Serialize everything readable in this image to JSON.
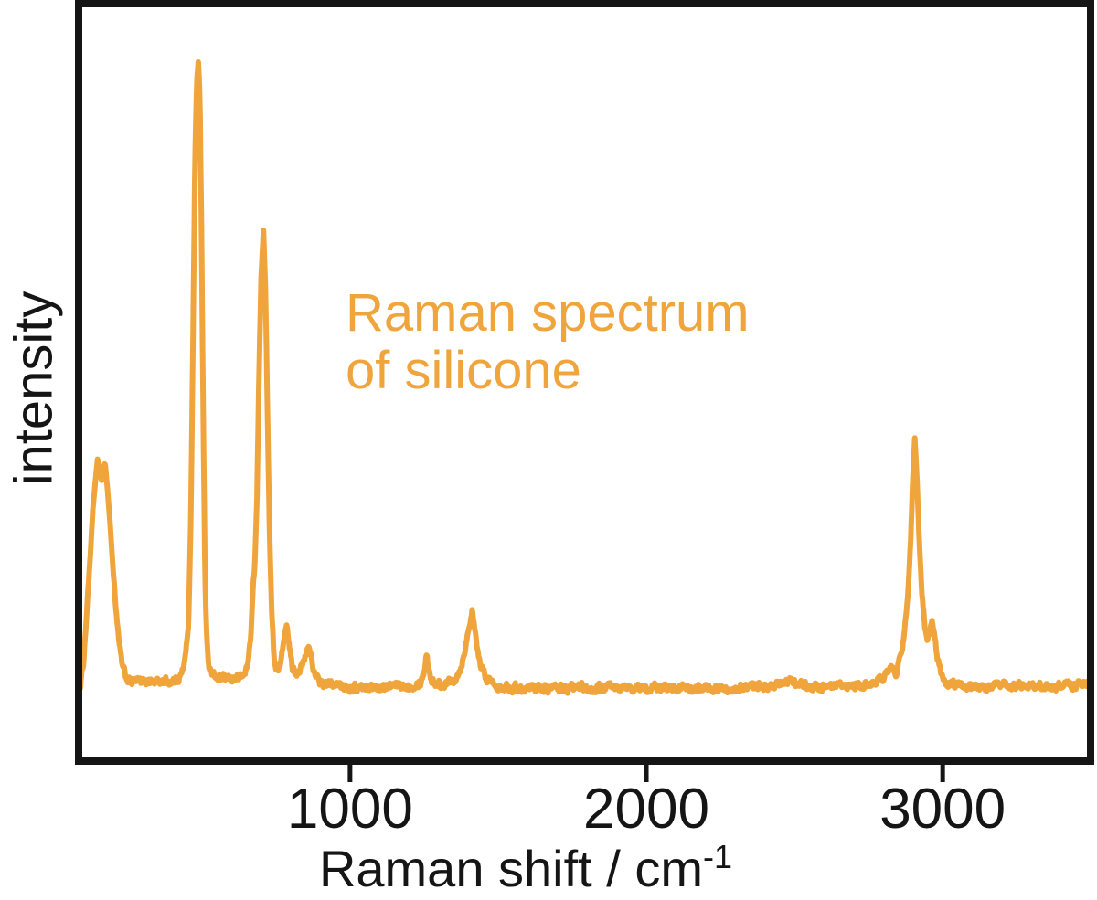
{
  "figure": {
    "ylabel": "intensity",
    "xlabel_main": "Raman shift / cm",
    "xlabel_exponent": "-1",
    "annotation_line1": "Raman spectrum",
    "annotation_line2": "of silicone"
  },
  "chart_data": {
    "type": "line",
    "title": "Raman spectrum of silicone",
    "xlabel": "Raman shift / cm^-1",
    "ylabel": "intensity",
    "x_range": [
      90,
      3490
    ],
    "x_ticks": [
      1000,
      2000,
      3000
    ],
    "y_ticks": [],
    "grid": false,
    "legend": "none",
    "line_color": "#EFA53C",
    "annotation_color": "#EFA53C",
    "axis_color": "#151515",
    "noise_amplitude": 0.006,
    "major_peaks": [
      {
        "center": 150,
        "rel_height": 0.36,
        "note": "broad double maximum at ~150 and ~173"
      },
      {
        "center": 488,
        "rel_height": 1.0
      },
      {
        "center": 708,
        "rel_height": 0.73
      },
      {
        "center": 787,
        "rel_height": 0.1
      },
      {
        "center": 862,
        "rel_height": 0.06
      },
      {
        "center": 1262,
        "rel_height": 0.05
      },
      {
        "center": 1412,
        "rel_height": 0.12
      },
      {
        "center": 2906,
        "rel_height": 0.4
      },
      {
        "center": 2965,
        "rel_height": 0.1
      }
    ],
    "series": [
      {
        "name": "silicone Raman spectrum",
        "points": [
          [
            90,
            0.0
          ],
          [
            100,
            0.035
          ],
          [
            108,
            0.09
          ],
          [
            117,
            0.16
          ],
          [
            125,
            0.22
          ],
          [
            132,
            0.28
          ],
          [
            141,
            0.33
          ],
          [
            148,
            0.362
          ],
          [
            155,
            0.35
          ],
          [
            161,
            0.327
          ],
          [
            167,
            0.336
          ],
          [
            173,
            0.358
          ],
          [
            181,
            0.318
          ],
          [
            190,
            0.262
          ],
          [
            199,
            0.195
          ],
          [
            209,
            0.13
          ],
          [
            220,
            0.07
          ],
          [
            232,
            0.03
          ],
          [
            244,
            0.013
          ],
          [
            260,
            0.005
          ],
          [
            280,
            0.007
          ],
          [
            300,
            0.005
          ],
          [
            320,
            0.008
          ],
          [
            345,
            0.005
          ],
          [
            370,
            0.007
          ],
          [
            395,
            0.006
          ],
          [
            415,
            0.009
          ],
          [
            432,
            0.018
          ],
          [
            445,
            0.045
          ],
          [
            455,
            0.1
          ],
          [
            463,
            0.27
          ],
          [
            470,
            0.55
          ],
          [
            477,
            0.85
          ],
          [
            483,
            0.97
          ],
          [
            488,
            1.0
          ],
          [
            493,
            0.95
          ],
          [
            499,
            0.72
          ],
          [
            505,
            0.42
          ],
          [
            511,
            0.17
          ],
          [
            517,
            0.07
          ],
          [
            524,
            0.032
          ],
          [
            533,
            0.018
          ],
          [
            545,
            0.013
          ],
          [
            560,
            0.011
          ],
          [
            580,
            0.01
          ],
          [
            600,
            0.011
          ],
          [
            620,
            0.012
          ],
          [
            640,
            0.015
          ],
          [
            655,
            0.032
          ],
          [
            665,
            0.08
          ],
          [
            673,
            0.16
          ],
          [
            679,
            0.195
          ],
          [
            686,
            0.3
          ],
          [
            693,
            0.5
          ],
          [
            700,
            0.655
          ],
          [
            708,
            0.73
          ],
          [
            715,
            0.63
          ],
          [
            722,
            0.42
          ],
          [
            729,
            0.23
          ],
          [
            736,
            0.115
          ],
          [
            743,
            0.05
          ],
          [
            750,
            0.025
          ],
          [
            758,
            0.022
          ],
          [
            768,
            0.04
          ],
          [
            778,
            0.08
          ],
          [
            787,
            0.103
          ],
          [
            796,
            0.057
          ],
          [
            806,
            0.028
          ],
          [
            818,
            0.02
          ],
          [
            832,
            0.026
          ],
          [
            845,
            0.038
          ],
          [
            855,
            0.054
          ],
          [
            862,
            0.063
          ],
          [
            871,
            0.042
          ],
          [
            881,
            0.016
          ],
          [
            893,
            0.007
          ],
          [
            910,
            0.002
          ],
          [
            940,
            0.001
          ],
          [
            980,
            -0.002
          ],
          [
            1020,
            -0.004
          ],
          [
            1060,
            -0.003
          ],
          [
            1100,
            -0.004
          ],
          [
            1140,
            -0.002
          ],
          [
            1180,
            -0.001
          ],
          [
            1215,
            0.001
          ],
          [
            1238,
            0.005
          ],
          [
            1250,
            0.022
          ],
          [
            1258,
            0.051
          ],
          [
            1267,
            0.024
          ],
          [
            1278,
            0.006
          ],
          [
            1295,
            0.001
          ],
          [
            1315,
            0.002
          ],
          [
            1338,
            0.006
          ],
          [
            1358,
            0.013
          ],
          [
            1374,
            0.028
          ],
          [
            1390,
            0.062
          ],
          [
            1403,
            0.098
          ],
          [
            1412,
            0.119
          ],
          [
            1421,
            0.088
          ],
          [
            1431,
            0.052
          ],
          [
            1443,
            0.028
          ],
          [
            1457,
            0.014
          ],
          [
            1474,
            0.007
          ],
          [
            1500,
            0.0
          ],
          [
            1540,
            -0.003
          ],
          [
            1580,
            -0.005
          ],
          [
            1620,
            -0.003
          ],
          [
            1660,
            -0.005
          ],
          [
            1700,
            -0.004
          ],
          [
            1740,
            -0.006
          ],
          [
            1780,
            -0.004
          ],
          [
            1820,
            -0.006
          ],
          [
            1860,
            -0.004
          ],
          [
            1900,
            -0.005
          ],
          [
            1940,
            -0.004
          ],
          [
            1980,
            -0.006
          ],
          [
            2020,
            -0.004
          ],
          [
            2060,
            -0.005
          ],
          [
            2100,
            -0.003
          ],
          [
            2140,
            -0.005
          ],
          [
            2180,
            -0.006
          ],
          [
            2220,
            -0.004
          ],
          [
            2260,
            -0.005
          ],
          [
            2300,
            -0.004
          ],
          [
            2340,
            -0.003
          ],
          [
            2380,
            -0.002
          ],
          [
            2420,
            -0.001
          ],
          [
            2460,
            0.002
          ],
          [
            2490,
            0.007
          ],
          [
            2515,
            0.001
          ],
          [
            2550,
            -0.002
          ],
          [
            2590,
            -0.004
          ],
          [
            2630,
            -0.003
          ],
          [
            2670,
            -0.003
          ],
          [
            2710,
            -0.002
          ],
          [
            2745,
            0.0
          ],
          [
            2775,
            0.005
          ],
          [
            2798,
            0.013
          ],
          [
            2815,
            0.023
          ],
          [
            2830,
            0.027
          ],
          [
            2843,
            0.021
          ],
          [
            2856,
            0.042
          ],
          [
            2870,
            0.078
          ],
          [
            2882,
            0.14
          ],
          [
            2892,
            0.23
          ],
          [
            2899,
            0.33
          ],
          [
            2906,
            0.397
          ],
          [
            2913,
            0.335
          ],
          [
            2921,
            0.235
          ],
          [
            2930,
            0.148
          ],
          [
            2940,
            0.094
          ],
          [
            2948,
            0.074
          ],
          [
            2956,
            0.086
          ],
          [
            2965,
            0.101
          ],
          [
            2974,
            0.071
          ],
          [
            2984,
            0.04
          ],
          [
            2996,
            0.017
          ],
          [
            3010,
            0.007
          ],
          [
            3030,
            0.002
          ],
          [
            3060,
            0.0
          ],
          [
            3100,
            -0.002
          ],
          [
            3140,
            -0.003
          ],
          [
            3180,
            -0.001
          ],
          [
            3220,
            -0.003
          ],
          [
            3260,
            -0.001
          ],
          [
            3300,
            -0.002
          ],
          [
            3340,
            -0.001
          ],
          [
            3380,
            -0.002
          ],
          [
            3420,
            0.0
          ],
          [
            3460,
            0.001
          ],
          [
            3490,
            0.001
          ]
        ]
      }
    ]
  }
}
